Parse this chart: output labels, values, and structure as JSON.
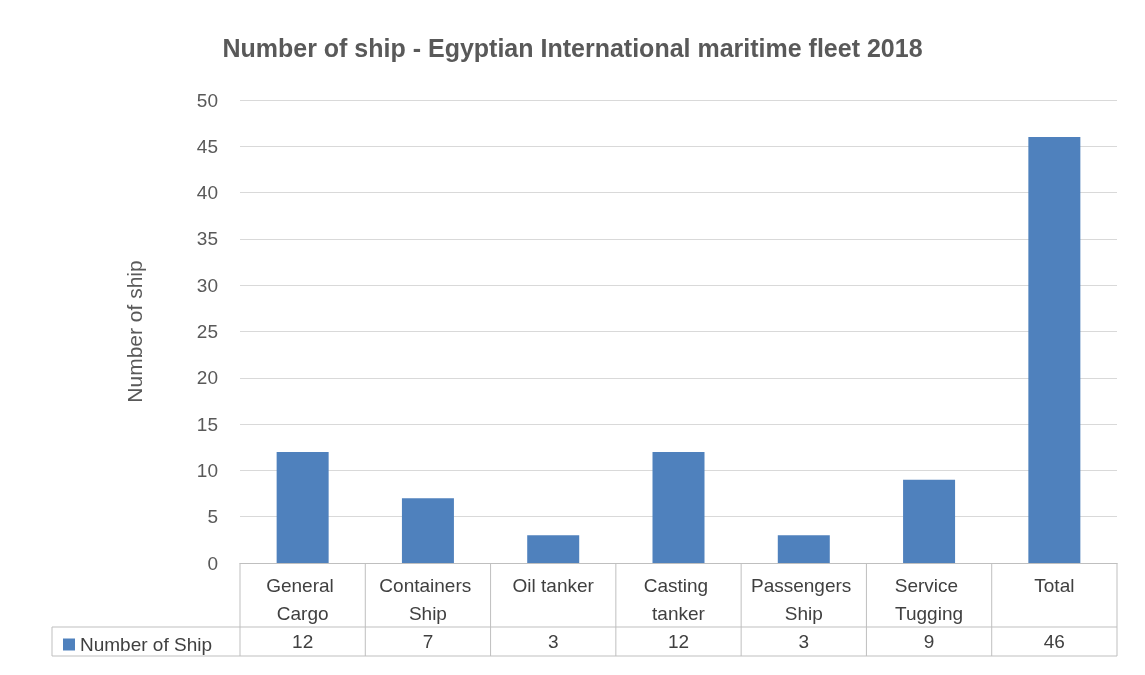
{
  "chart_data": {
    "type": "bar",
    "title": "Number of ship - Egyptian International maritime fleet 2018",
    "ylabel": "Number of ship",
    "categories": [
      "General Cargo",
      "Containers Ship",
      "Oil tanker",
      "Casting tanker",
      "Passengers Ship",
      "Service Tugging",
      "Total"
    ],
    "series": [
      {
        "name": "Number of Ship",
        "color": "#4f81bd",
        "values": [
          12,
          7,
          3,
          12,
          3,
          9,
          46
        ]
      }
    ],
    "ylim": [
      0,
      50
    ],
    "yticks": [
      0,
      5,
      10,
      15,
      20,
      25,
      30,
      35,
      40,
      45,
      50
    ],
    "grid": "y",
    "legend": "bottom",
    "data_labels": true
  }
}
